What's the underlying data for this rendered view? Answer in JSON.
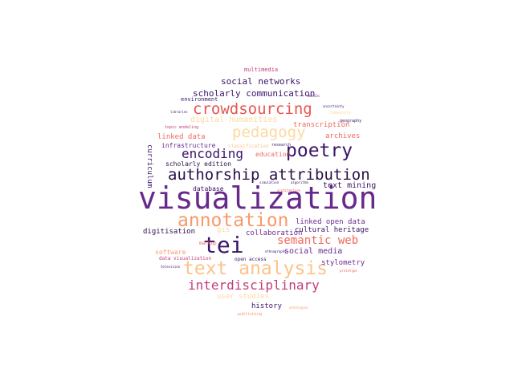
{
  "colors": {
    "background": "#ffffff",
    "palette": [
      "#3b1468",
      "#662a8a",
      "#2a1048",
      "#e8544e",
      "#f0695a",
      "#f79a6c",
      "#fbc38a",
      "#fcd9a2",
      "#c13d7a",
      "#6a2a8f"
    ]
  },
  "words": [
    {
      "text": "visualization"
    },
    {
      "text": "authorship attribution"
    },
    {
      "text": "tei"
    },
    {
      "text": "text analysis"
    },
    {
      "text": "annotation"
    },
    {
      "text": "crowdsourcing"
    },
    {
      "text": "poetry"
    },
    {
      "text": "pedagogy"
    },
    {
      "text": "encoding"
    },
    {
      "text": "interdisciplinary"
    },
    {
      "text": "semantic web"
    },
    {
      "text": "scholarly communication"
    },
    {
      "text": "social networks"
    },
    {
      "text": "digital humanities"
    },
    {
      "text": "transcription"
    },
    {
      "text": "linked data"
    },
    {
      "text": "infrastructure"
    },
    {
      "text": "archives"
    },
    {
      "text": "education"
    },
    {
      "text": "scholarly edition"
    },
    {
      "text": "text mining"
    },
    {
      "text": "database"
    },
    {
      "text": "linked open data"
    },
    {
      "text": "digitisation"
    },
    {
      "text": "collaboration"
    },
    {
      "text": "cultural heritage"
    },
    {
      "text": "social media"
    },
    {
      "text": "stylometry"
    },
    {
      "text": "software"
    },
    {
      "text": "data visualization"
    },
    {
      "text": "user studies"
    },
    {
      "text": "history"
    },
    {
      "text": "environment"
    },
    {
      "text": "multimedia"
    },
    {
      "text": "topic modeling"
    },
    {
      "text": "classification"
    },
    {
      "text": "curriculum"
    },
    {
      "text": "gis"
    },
    {
      "text": "open access"
    },
    {
      "text": "publishing"
    },
    {
      "text": "markup"
    },
    {
      "text": "music"
    },
    {
      "text": "community"
    },
    {
      "text": "research"
    },
    {
      "text": "ethnography"
    },
    {
      "text": "geography"
    },
    {
      "text": "prototype"
    },
    {
      "text": "television"
    },
    {
      "text": "ontologies"
    },
    {
      "text": "architecture"
    },
    {
      "text": "algorithm"
    },
    {
      "text": "uncertainty"
    },
    {
      "text": "libraries"
    },
    {
      "text": "simulation"
    }
  ]
}
